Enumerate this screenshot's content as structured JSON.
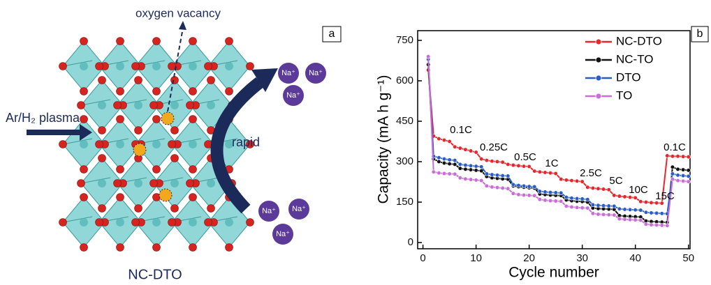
{
  "panel_a": {
    "panel_label": "a",
    "vacancy_label": "oxygen vacancy",
    "plasma_label": "Ar/H₂ plasma",
    "arrow_label": "rapid",
    "structure_label": "NC-DTO",
    "ions": [
      "Na⁺",
      "Na⁺",
      "Na⁺",
      "Na⁺",
      "Na⁺",
      "Na⁺"
    ]
  },
  "chart_data": {
    "type": "line",
    "panel_label": "b",
    "x_label": "Cycle number",
    "y_label": "Capacity (mA h g⁻¹)",
    "x": [
      1,
      2,
      3,
      4,
      5,
      6,
      7,
      8,
      9,
      10,
      11,
      12,
      13,
      14,
      15,
      16,
      17,
      18,
      19,
      20,
      21,
      22,
      23,
      24,
      25,
      26,
      27,
      28,
      29,
      30,
      31,
      32,
      33,
      34,
      35,
      36,
      37,
      38,
      39,
      40,
      41,
      42,
      43,
      44,
      45,
      46,
      47,
      48,
      49,
      50
    ],
    "xlim": [
      -1,
      50.3
    ],
    "xticks": [
      0,
      10,
      20,
      30,
      40,
      50
    ],
    "ylim": [
      -23,
      786
    ],
    "yticks": [
      0,
      150,
      300,
      450,
      600,
      750
    ],
    "legend": "upper right",
    "annotations": [
      "0.1C",
      "0.25C",
      "0.5C",
      "1C",
      "2.5C",
      "5C",
      "10C",
      "15C",
      "0.1C"
    ],
    "series": [
      {
        "name": "NC-DTO",
        "color": "#e8262b",
        "values": [
          640,
          395,
          385,
          380,
          375,
          355,
          350,
          345,
          340,
          335,
          310,
          305,
          302,
          300,
          298,
          290,
          287,
          285,
          283,
          282,
          265,
          262,
          260,
          258,
          256,
          235,
          232,
          230,
          228,
          226,
          205,
          202,
          200,
          198,
          196,
          175,
          172,
          170,
          168,
          166,
          152,
          150,
          148,
          147,
          146,
          322,
          320,
          320,
          319,
          318
        ]
      },
      {
        "name": "NC-TO",
        "color": "#111111",
        "values": [
          660,
          310,
          300,
          295,
          292,
          290,
          275,
          272,
          270,
          268,
          266,
          245,
          240,
          238,
          236,
          235,
          210,
          207,
          205,
          203,
          202,
          180,
          178,
          176,
          175,
          174,
          158,
          155,
          153,
          152,
          150,
          128,
          126,
          125,
          124,
          123,
          100,
          98,
          97,
          96,
          95,
          80,
          78,
          77,
          76,
          75,
          280,
          272,
          270,
          268
        ]
      },
      {
        "name": "DTO",
        "color": "#2a5dc8",
        "values": [
          680,
          320,
          315,
          310,
          307,
          305,
          290,
          287,
          285,
          283,
          281,
          255,
          252,
          250,
          248,
          247,
          215,
          212,
          210,
          208,
          207,
          190,
          188,
          186,
          185,
          184,
          168,
          165,
          163,
          162,
          160,
          140,
          138,
          137,
          136,
          135,
          125,
          123,
          122,
          121,
          120,
          112,
          110,
          109,
          108,
          107,
          255,
          250,
          248,
          246
        ]
      },
      {
        "name": "TO",
        "color": "#c86ed6",
        "values": [
          690,
          262,
          258,
          256,
          255,
          254,
          240,
          236,
          234,
          232,
          230,
          210,
          206,
          204,
          202,
          200,
          182,
          178,
          176,
          175,
          174,
          160,
          157,
          155,
          154,
          153,
          135,
          132,
          130,
          129,
          128,
          108,
          105,
          104,
          103,
          102,
          88,
          86,
          85,
          84,
          83,
          68,
          66,
          65,
          64,
          63,
          235,
          230,
          228,
          226
        ]
      }
    ]
  }
}
